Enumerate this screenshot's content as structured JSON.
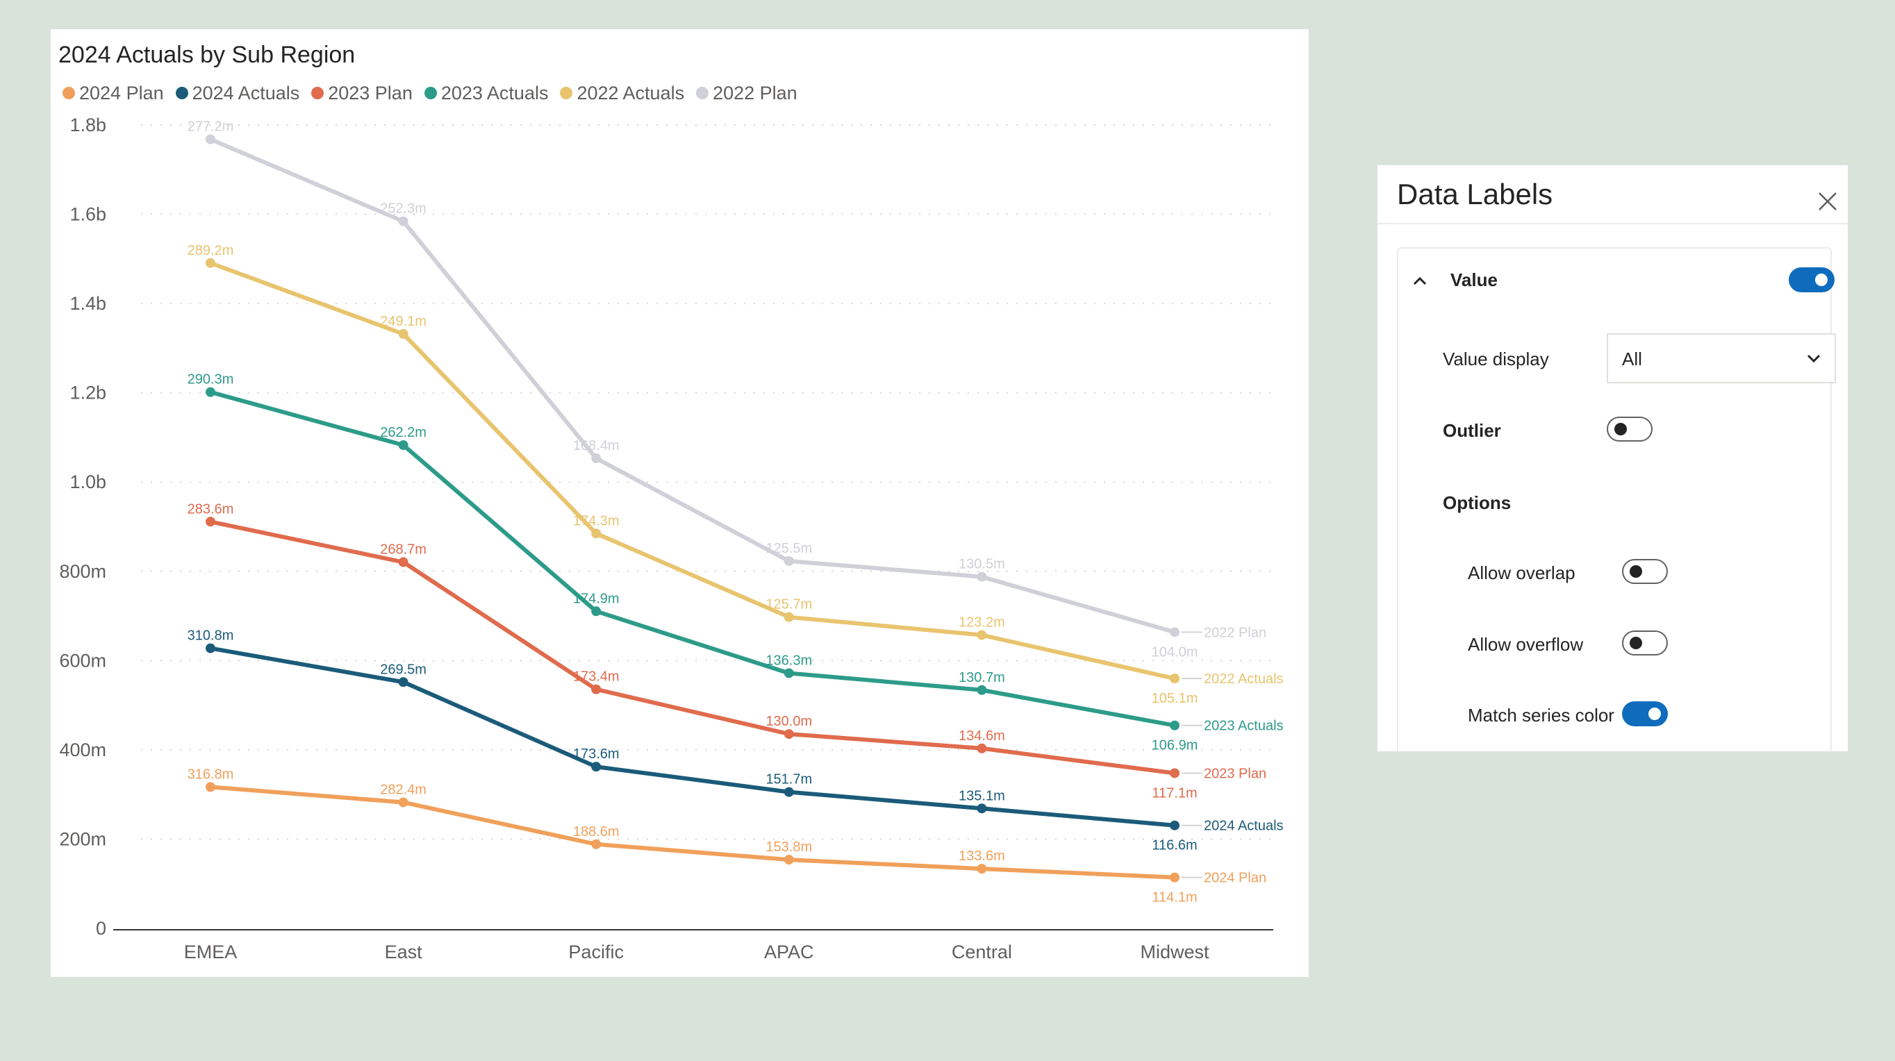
{
  "chart_data": {
    "type": "line",
    "title": "2024 Actuals by Sub Region",
    "categories": [
      "EMEA",
      "East",
      "Pacific",
      "APAC",
      "Central",
      "Midwest"
    ],
    "y_ticks": [
      "0",
      "200m",
      "400m",
      "600m",
      "800m",
      "1.0b",
      "1.2b",
      "1.4b",
      "1.6b",
      "1.8b"
    ],
    "ylim": [
      0,
      1800
    ],
    "grid": true,
    "legend_position": "top-left",
    "series": [
      {
        "name": "2024 Plan",
        "color": "#f0a05a",
        "values": [
          316.8,
          282.4,
          188.6,
          153.8,
          133.6,
          114.1
        ],
        "labels": [
          "316.8m",
          "282.4m",
          "188.6m",
          "153.8m",
          "133.6m",
          "114.1m"
        ]
      },
      {
        "name": "2024 Actuals",
        "color": "#1b5b7a",
        "values": [
          627.6,
          551.9,
          362.2,
          305.5,
          268.7,
          230.7
        ],
        "labels": [
          "310.8m",
          "269.5m",
          "173.6m",
          "151.7m",
          "135.1m",
          "116.6m"
        ]
      },
      {
        "name": "2023 Plan",
        "color": "#e06b4d",
        "values": [
          911.2,
          820.6,
          535.6,
          435.5,
          403.3,
          347.8
        ],
        "labels": [
          "283.6m",
          "268.7m",
          "173.4m",
          "130.0m",
          "134.6m",
          "117.1m"
        ]
      },
      {
        "name": "2023 Actuals",
        "color": "#2d9b8a",
        "values": [
          1201.5,
          1082.8,
          710.5,
          571.8,
          534.0,
          454.7
        ],
        "labels": [
          "290.3m",
          "262.2m",
          "174.9m",
          "136.3m",
          "130.7m",
          "106.9m"
        ]
      },
      {
        "name": "2022 Actuals",
        "color": "#e8c46e",
        "values": [
          1490.7,
          1331.9,
          884.8,
          697.5,
          657.2,
          559.8
        ],
        "labels": [
          "289.2m",
          "249.1m",
          "174.3m",
          "125.7m",
          "123.2m",
          "105.1m"
        ]
      },
      {
        "name": "2022 Plan",
        "color": "#cfd0d8",
        "values": [
          1767.9,
          1584.2,
          1053.2,
          823.0,
          787.7,
          663.8
        ],
        "labels": [
          "277.2m",
          "252.3m",
          "168.4m",
          "125.5m",
          "130.5m",
          "104.0m"
        ]
      }
    ]
  },
  "panel": {
    "title": "Data Labels",
    "close_icon": "close-icon",
    "section": {
      "label": "Value",
      "enabled": true,
      "value_display_label": "Value display",
      "value_display_value": "All",
      "outlier_label": "Outlier",
      "outlier_enabled": false,
      "options_label": "Options",
      "allow_overlap_label": "Allow overlap",
      "allow_overlap_enabled": false,
      "allow_overflow_label": "Allow overflow",
      "allow_overflow_enabled": false,
      "match_series_color_label": "Match series color",
      "match_series_color_enabled": true
    }
  }
}
